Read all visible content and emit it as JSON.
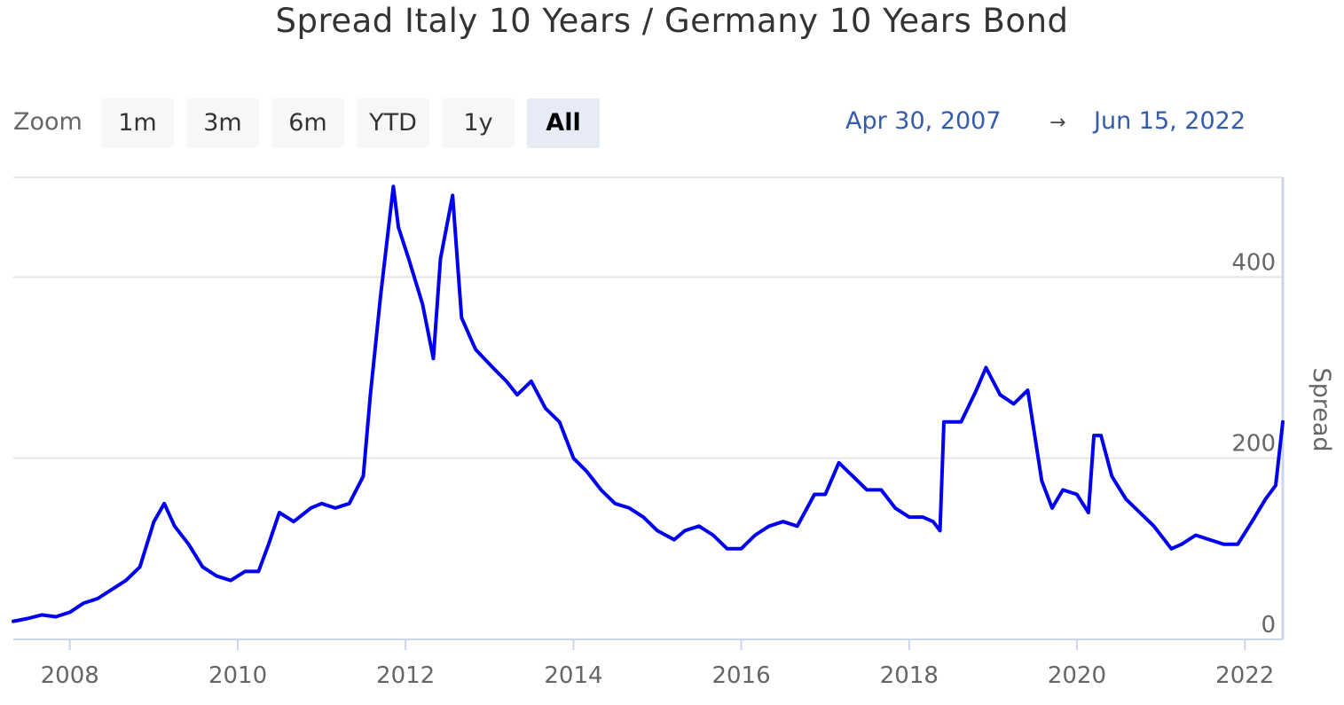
{
  "title": "Spread Italy 10 Years / Germany 10 Years Bond",
  "zoom": {
    "label": "Zoom",
    "buttons": [
      "1m",
      "3m",
      "6m",
      "YTD",
      "1y",
      "All"
    ],
    "active": "All"
  },
  "range": {
    "from": "Apr 30, 2007",
    "arrow": "→",
    "to": "Jun 15, 2022"
  },
  "colors": {
    "series": "#0000ee",
    "grid": "#e6e6e6",
    "axis_text": "#666666",
    "range_text": "#335cad"
  },
  "chart_data": {
    "type": "line",
    "title": "Spread Italy 10 Years / Germany 10 Years Bond",
    "ylabel": "Spread",
    "xlabel": "",
    "y_axis_side": "right",
    "ylim": [
      0,
      510
    ],
    "xlim": [
      "2007-04-30",
      "2022-06-15"
    ],
    "y_ticks": [
      0,
      200,
      400
    ],
    "x_ticks": [
      "2008",
      "2010",
      "2012",
      "2014",
      "2016",
      "2018",
      "2020",
      "2022"
    ],
    "grid": true,
    "legend": "none",
    "series": [
      {
        "x": [
          "2007-04-30",
          "2007-07-01",
          "2007-09-01",
          "2007-11-01",
          "2008-01-01",
          "2008-03-01",
          "2008-05-01",
          "2008-07-01",
          "2008-09-01",
          "2008-11-01",
          "2009-01-01",
          "2009-02-15",
          "2009-04-01",
          "2009-06-01",
          "2009-08-01",
          "2009-10-01",
          "2009-12-01",
          "2010-02-01",
          "2010-04-01",
          "2010-05-15",
          "2010-07-01",
          "2010-09-01",
          "2010-11-15",
          "2011-01-01",
          "2011-03-01",
          "2011-05-01",
          "2011-07-01",
          "2011-08-01",
          "2011-09-15",
          "2011-11-09",
          "2011-12-01",
          "2012-01-15",
          "2012-03-15",
          "2012-05-01",
          "2012-06-01",
          "2012-07-24",
          "2012-09-01",
          "2012-11-01",
          "2013-01-15",
          "2013-03-15",
          "2013-05-01",
          "2013-07-01",
          "2013-09-01",
          "2013-11-01",
          "2014-01-01",
          "2014-03-01",
          "2014-05-01",
          "2014-07-01",
          "2014-09-01",
          "2014-11-01",
          "2015-01-01",
          "2015-03-15",
          "2015-05-01",
          "2015-07-01",
          "2015-09-01",
          "2015-11-01",
          "2016-01-01",
          "2016-03-01",
          "2016-05-01",
          "2016-07-01",
          "2016-09-01",
          "2016-11-15",
          "2017-01-01",
          "2017-03-01",
          "2017-05-01",
          "2017-07-01",
          "2017-09-01",
          "2017-11-01",
          "2018-01-01",
          "2018-03-01",
          "2018-04-15",
          "2018-05-15",
          "2018-06-01",
          "2018-08-15",
          "2018-10-20",
          "2018-12-01",
          "2019-02-01",
          "2019-04-01",
          "2019-06-01",
          "2019-08-01",
          "2019-09-15",
          "2019-11-01",
          "2020-01-01",
          "2020-02-20",
          "2020-03-15",
          "2020-04-15",
          "2020-06-01",
          "2020-08-01",
          "2020-10-01",
          "2020-12-01",
          "2021-02-15",
          "2021-04-01",
          "2021-06-01",
          "2021-08-01",
          "2021-10-01",
          "2021-12-01",
          "2022-02-01",
          "2022-04-01",
          "2022-05-15",
          "2022-06-15"
        ],
        "values": [
          20,
          23,
          27,
          25,
          30,
          40,
          45,
          55,
          65,
          80,
          130,
          150,
          125,
          105,
          80,
          70,
          65,
          75,
          75,
          105,
          140,
          130,
          145,
          150,
          145,
          150,
          180,
          270,
          380,
          500,
          455,
          420,
          370,
          310,
          420,
          490,
          355,
          320,
          300,
          285,
          270,
          285,
          255,
          240,
          200,
          185,
          165,
          150,
          145,
          135,
          120,
          110,
          120,
          125,
          115,
          100,
          100,
          115,
          125,
          130,
          125,
          160,
          160,
          195,
          180,
          165,
          165,
          145,
          135,
          135,
          130,
          120,
          240,
          240,
          275,
          300,
          270,
          260,
          275,
          175,
          145,
          165,
          160,
          140,
          225,
          225,
          180,
          155,
          140,
          125,
          100,
          105,
          115,
          110,
          105,
          105,
          130,
          155,
          170,
          240
        ]
      }
    ]
  }
}
